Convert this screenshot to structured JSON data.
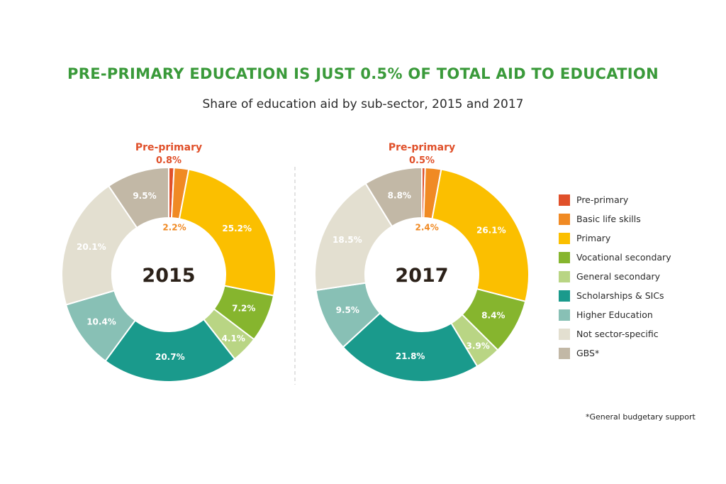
{
  "title": "PRE-PRIMARY EDUCATION IS JUST 0.5% OF TOTAL AID TO EDUCATION",
  "subtitle": "Share of education aid by sub-sector, 2015 and 2017",
  "footnote": "*General budgetary support",
  "chart_data": [
    {
      "type": "pie",
      "year_label": "2015",
      "callout_label": "Pre-primary",
      "categories": [
        "Pre-primary",
        "Basic life skills",
        "Primary",
        "Vocational secondary",
        "General secondary",
        "Scholarships & SICs",
        "Higher Education",
        "Not sector-specific",
        "GBS*"
      ],
      "values": [
        0.8,
        2.2,
        25.2,
        7.2,
        4.1,
        20.7,
        10.4,
        20.1,
        9.5
      ],
      "unit": "%"
    },
    {
      "type": "pie",
      "year_label": "2017",
      "callout_label": "Pre-primary",
      "categories": [
        "Pre-primary",
        "Basic life skills",
        "Primary",
        "Vocational secondary",
        "General secondary",
        "Scholarships & SICs",
        "Higher Education",
        "Not sector-specific",
        "GBS*"
      ],
      "values": [
        0.5,
        2.4,
        26.1,
        8.4,
        3.9,
        21.8,
        9.5,
        18.5,
        8.8
      ],
      "unit": "%"
    }
  ],
  "legend": [
    {
      "label": "Pre-primary",
      "color": "#e0502a"
    },
    {
      "label": "Basic life skills",
      "color": "#f08a24"
    },
    {
      "label": "Primary",
      "color": "#fbbf00"
    },
    {
      "label": "Vocational secondary",
      "color": "#86b52e"
    },
    {
      "label": "General secondary",
      "color": "#b9d584"
    },
    {
      "label": "Scholarships & SICs",
      "color": "#1a9a8c"
    },
    {
      "label": "Higher Education",
      "color": "#88c0b5"
    },
    {
      "label": "Not sector-specific",
      "color": "#e3dfd0"
    },
    {
      "label": "GBS*",
      "color": "#c2b8a6"
    }
  ]
}
